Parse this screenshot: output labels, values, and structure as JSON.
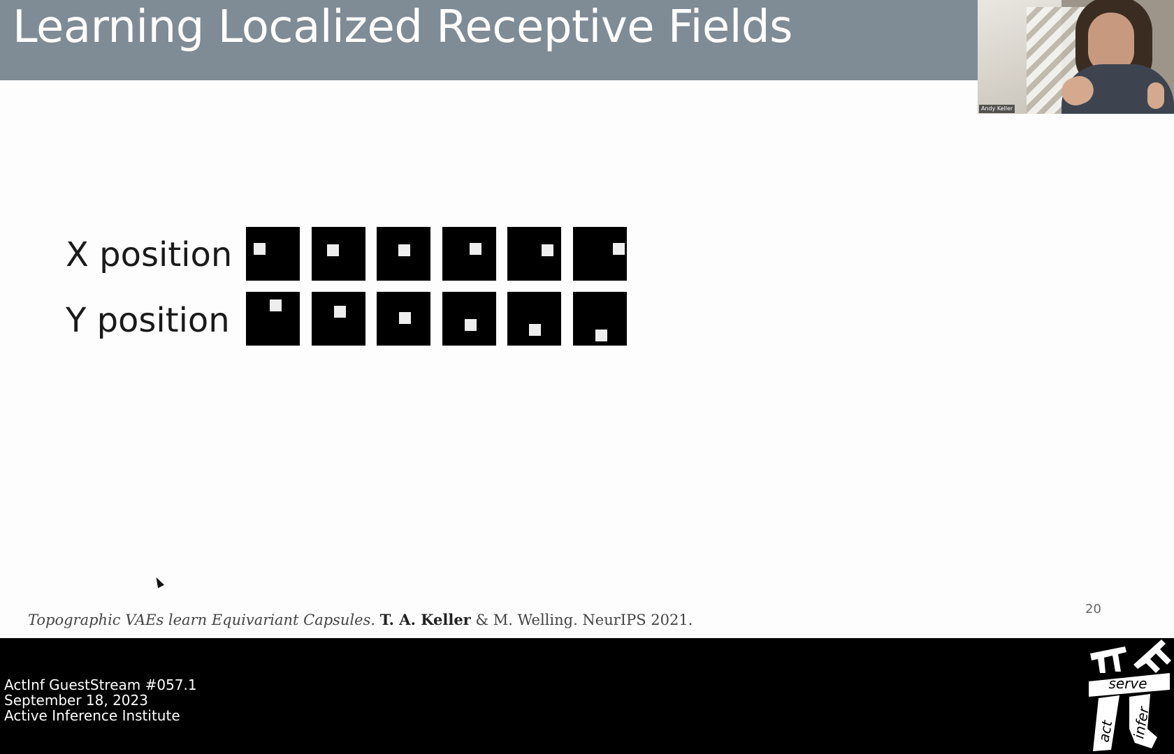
{
  "slide": {
    "title": "Learning Localized Receptive Fields",
    "page_number": "20",
    "rows": [
      {
        "label": "X position",
        "dot_offsets": [
          [
            0.14,
            0.3
          ],
          [
            0.28,
            0.32
          ],
          [
            0.4,
            0.32
          ],
          [
            0.5,
            0.3
          ],
          [
            0.64,
            0.32
          ],
          [
            0.74,
            0.3
          ]
        ]
      },
      {
        "label": "Y position",
        "dot_offsets": [
          [
            0.44,
            0.14
          ],
          [
            0.42,
            0.26
          ],
          [
            0.42,
            0.38
          ],
          [
            0.42,
            0.5
          ],
          [
            0.4,
            0.6
          ],
          [
            0.42,
            0.7
          ]
        ]
      }
    ],
    "citation": {
      "title": "Topographic VAEs learn Equivariant Capsules.",
      "author": "T. A. Keller",
      "rest": "& M. Welling. NeurIPS 2021."
    }
  },
  "webcam": {
    "participant_name": "Andy Keller"
  },
  "stream": {
    "line1": "ActInf GuestStream #057.1",
    "line2": "September 18, 2023",
    "line3": "Active Inference Institute"
  },
  "logo": {
    "word_top": "serve",
    "word_left": "act",
    "word_right": "infer"
  },
  "colors": {
    "title_bar": "#7f8b95",
    "slide_background": "#fdfdfd",
    "bottom_bar": "#000000"
  }
}
